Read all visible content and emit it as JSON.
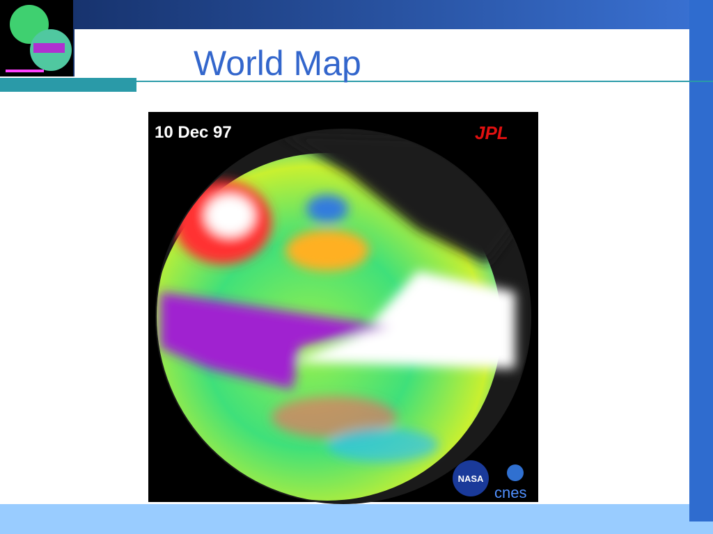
{
  "header": {
    "title": "World Map"
  },
  "image": {
    "date": "10 Dec 97",
    "logos": [
      "JPL",
      "NASA",
      "cnes"
    ]
  }
}
